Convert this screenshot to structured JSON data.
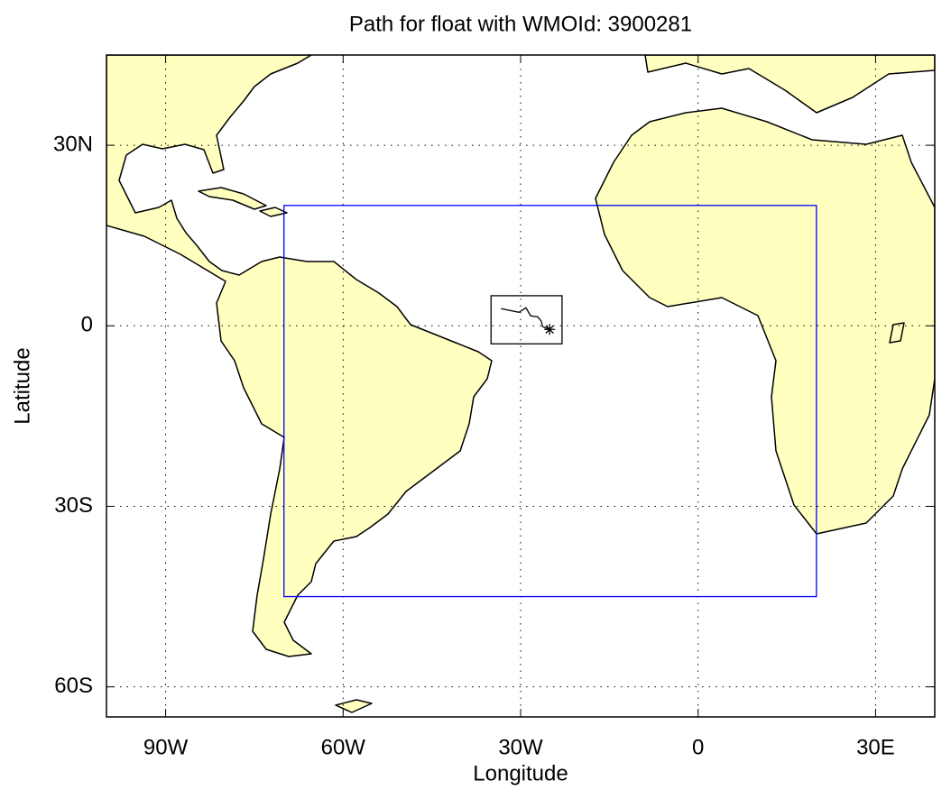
{
  "chart_data": {
    "type": "map",
    "title": "Path for float with WMOId: 3900281",
    "x_label": "Longitude",
    "y_label": "Latitude",
    "xlim": [
      -100,
      40
    ],
    "ylim": [
      -65,
      45
    ],
    "xticks": [
      {
        "value": -90,
        "label": "90W"
      },
      {
        "value": -60,
        "label": "60W"
      },
      {
        "value": -30,
        "label": "30W"
      },
      0,
      {
        "value": 30,
        "label": "30E"
      }
    ],
    "yticks": [
      {
        "value": 30,
        "label": "30N"
      },
      0,
      {
        "value": -30,
        "label": "30S"
      },
      {
        "value": -60,
        "label": "60S"
      }
    ],
    "grid": true,
    "land_color": "#ffffc0",
    "region_box": {
      "lon": [
        -70,
        20
      ],
      "lat": [
        -45,
        20
      ],
      "color": "#0000ff"
    },
    "zoom_box": {
      "lon": [
        -35,
        -23
      ],
      "lat": [
        -3,
        5
      ],
      "color": "#000000"
    },
    "track": {
      "lon": [
        -33.3,
        -30.3,
        -29.1,
        -28.3,
        -27.1,
        -26.5,
        -26.3,
        -25.1
      ],
      "lat": [
        2.85,
        2.25,
        3,
        1.65,
        1.5,
        0.75,
        -0.15,
        -0.6
      ],
      "color": "#000000"
    },
    "last_position": {
      "lon": -25.1,
      "lat": -0.6
    }
  }
}
